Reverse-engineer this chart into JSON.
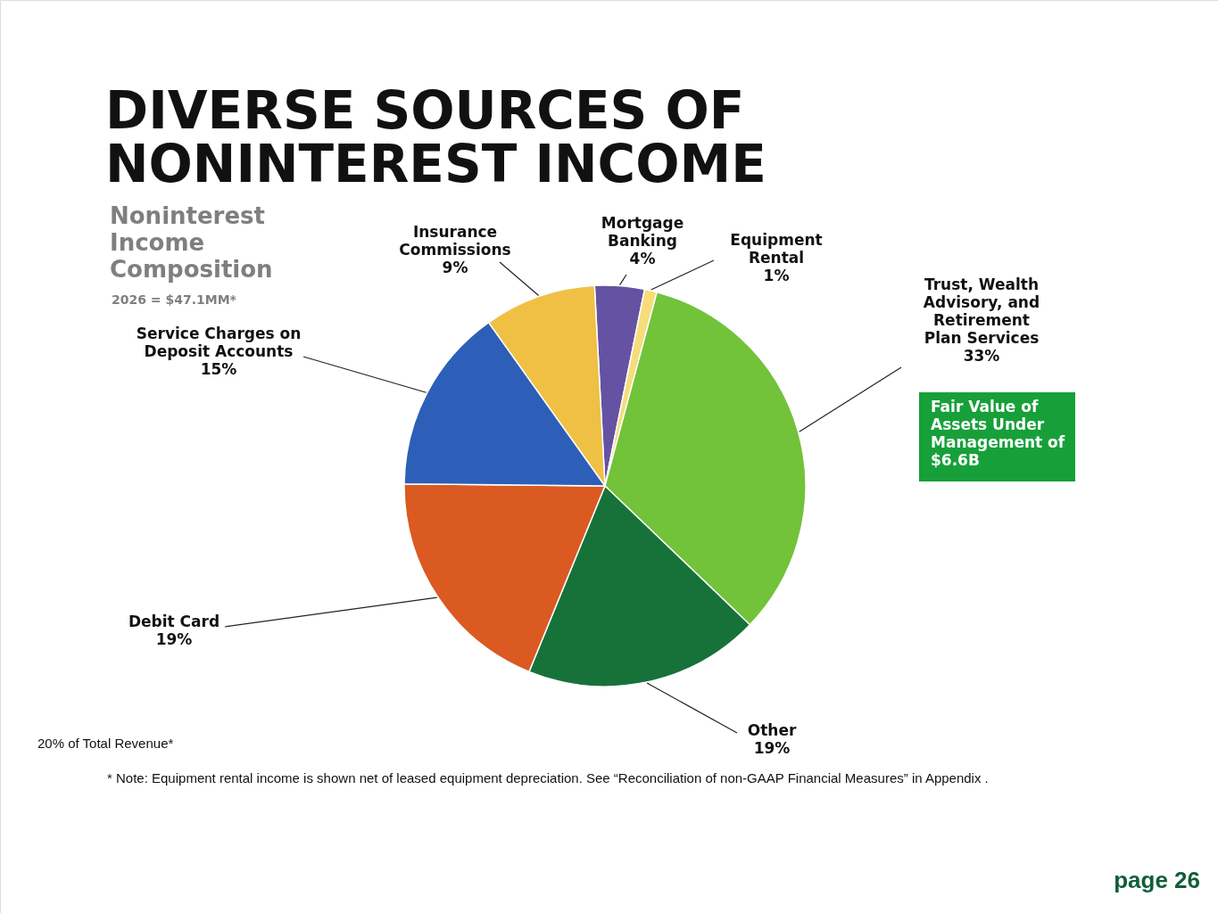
{
  "chart_data": {
    "type": "pie",
    "title": "DIVERSE SOURCES OF NONINTEREST INCOME",
    "subtitle": "Noninterest Income Composition",
    "categories": [
      "Mortgage Banking",
      "Equipment Rental",
      "Trust, Wealth Advisory, and Retirement Plan Services",
      "Other",
      "Debit Card",
      "Service Charges on Deposit Accounts",
      "Insurance Commissions"
    ],
    "values": [
      4,
      1,
      33,
      19,
      19,
      15,
      9
    ],
    "value_labels": [
      "4%",
      "1%",
      "33%",
      "19%",
      "19%",
      "15%",
      "9%"
    ],
    "colors": [
      "#6552a3",
      "#f7dc7a",
      "#72c23a",
      "#17723a",
      "#da5a22",
      "#2d5fb8",
      "#f0c045"
    ],
    "annotations": [
      "2026 = $47.1MM*",
      "Fair Value of Assets Under Management of $6.6B",
      "20% of Total Revenue*",
      "* Note: Equipment rental income is shown net of leased equipment depreciation. See “Reconciliation of non-GAAP Financial Measures” in Appendix .",
      "page 26"
    ]
  }
}
